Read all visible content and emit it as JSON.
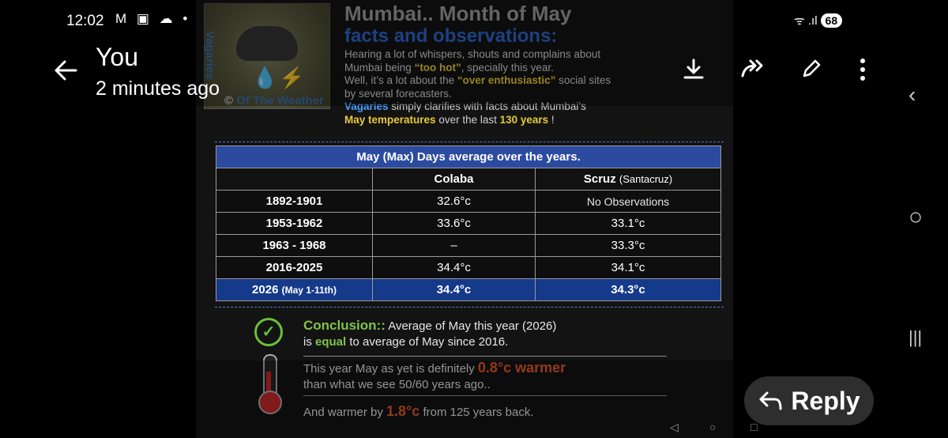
{
  "status_bar": {
    "time": "12:02",
    "icons": "M ▣ ☁ •",
    "signal": "ᯤ .ıl",
    "battery": "68"
  },
  "header": {
    "sender": "You",
    "timestamp": "2 minutes ago",
    "actions": [
      "download-icon",
      "forward-icon",
      "edit-icon",
      "more-icon"
    ]
  },
  "post": {
    "watermark_vertical": "Vagaries",
    "watermark_bottom": "Of The Weather",
    "watermark_copy": "©",
    "title_line1": "Mumbai.. Month of May",
    "title_line2": "facts and observations:",
    "intro": {
      "l1": "Hearing a lot of whispers, shouts and complains about",
      "l2a": "Mumbai being ",
      "l2b": "“too hot”",
      "l2c": ", specially this year.",
      "l3a": "Well, it’s a lot about the ",
      "l3b": "“over enthusiastic”",
      "l3c": " social sites",
      "l4": "by several forecasters.",
      "l5a": "Vagaries",
      "l5b": " simply clarifies with facts about Mumbai’s",
      "l6a": "May temperatures",
      "l6b": " over the last ",
      "l6c": "130 years",
      "l6d": " !"
    },
    "table": {
      "title": "May (Max) Days average over the years.",
      "col_colaba": "Colaba",
      "col_scruz": "Scruz",
      "col_scruz_sub": "(Santacruz)",
      "rows": [
        {
          "period": "1892-1901",
          "colaba": "32.6°c",
          "scruz": "No Observations"
        },
        {
          "period": "1953-1962",
          "colaba": "33.6°c",
          "scruz": "33.1°c"
        },
        {
          "period": "1963 - 1968",
          "colaba": "–",
          "scruz": "33.3°c"
        },
        {
          "period": "2016-2025",
          "colaba": "34.4°c",
          "scruz": "34.1°c"
        }
      ],
      "current": {
        "period": "2026",
        "period_sub": "(May 1-11th)",
        "colaba": "34.4°c",
        "scruz": "34.3°c"
      }
    },
    "conclusion": {
      "label": "Conclusion::",
      "l1": " Average of May this year (2026)",
      "l2a": "is ",
      "l2b": "equal",
      "l2c": " to average of May since 2016."
    },
    "warmer1": {
      "a": "This year May as yet is definitely ",
      "b": "0.8°c warmer",
      "c": "than what we see 50/60 years ago.."
    },
    "warmer2": {
      "a": "And warmer by ",
      "b": "1.8°c",
      "c": " from 125 years back."
    }
  },
  "reply": {
    "icon": "reply-arrow-icon",
    "label": "Reply"
  },
  "nav": {
    "back": "‹",
    "home": "○",
    "recents": "|||"
  }
}
